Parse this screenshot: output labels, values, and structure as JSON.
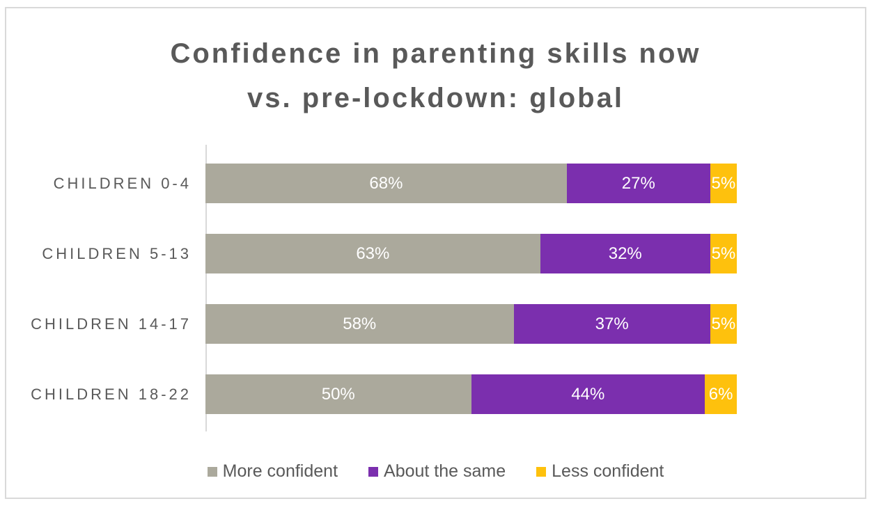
{
  "header": {
    "title_lines": [
      "Confidence in parenting skills now",
      "vs. pre-lockdown: global"
    ]
  },
  "colors": {
    "more_confident": "#aba99c",
    "about_the_same": "#7b2fae",
    "less_confident": "#fec10d",
    "axis_line": "#d9d9d9",
    "frame_border": "#d9d9d9",
    "text_gray": "#595959",
    "bar_label": "#ffffff"
  },
  "chart_data": {
    "type": "bar",
    "orientation": "horizontal",
    "stacked": true,
    "title": "Confidence in parenting skills now vs. pre-lockdown: global",
    "categories": [
      "CHILDREN 0-4",
      "CHILDREN 5-13",
      "CHILDREN 14-17",
      "CHILDREN 18-22"
    ],
    "series": [
      {
        "key": "more-confident",
        "name": "More confident",
        "color": "#aba99c",
        "values": [
          68,
          63,
          58,
          50
        ]
      },
      {
        "key": "about-the-same",
        "name": "About the same",
        "color": "#7b2fae",
        "values": [
          27,
          32,
          37,
          44
        ]
      },
      {
        "key": "less-confident",
        "name": "Less confident",
        "color": "#fec10d",
        "values": [
          5,
          5,
          5,
          6
        ]
      }
    ],
    "value_suffix": "%",
    "xlabel": "",
    "ylabel": "",
    "xlim": [
      0,
      100
    ],
    "grid": false,
    "legend_position": "bottom",
    "data_labels": true
  }
}
